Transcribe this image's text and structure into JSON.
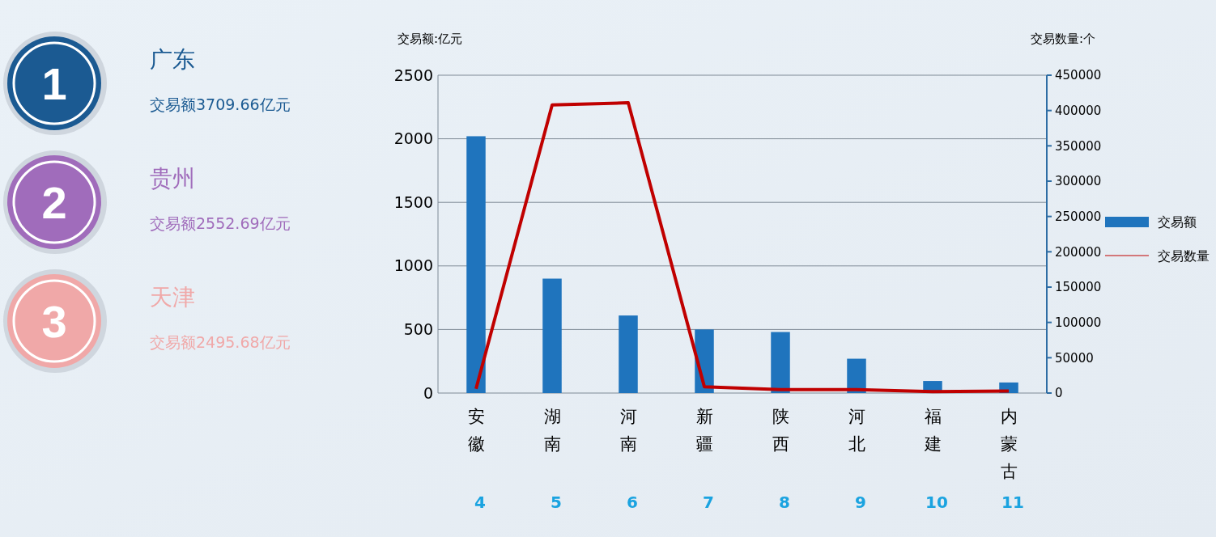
{
  "chart_data": {
    "type": "bar",
    "categories": [
      "安徽",
      "湖南",
      "河南",
      "新疆",
      "陕西",
      "河北",
      "福建",
      "内蒙古"
    ],
    "series": [
      {
        "name": "交易额",
        "color": "#1f74bd",
        "values": [
          2020,
          900,
          610,
          500,
          480,
          270,
          95,
          83
        ]
      },
      {
        "name": "交易数量",
        "type": "line",
        "axis": "y2",
        "color": "#c00000",
        "values": [
          6000,
          408000,
          411000,
          9000,
          5000,
          5000,
          2000,
          3000
        ]
      }
    ],
    "ylabel": "交易额:亿元",
    "y2label": "交易数量:个",
    "ylim": [
      0,
      2500
    ],
    "yticks": [
      0,
      500,
      1000,
      1500,
      2000,
      2500
    ],
    "y2lim": [
      0,
      450000
    ],
    "y2ticks": [
      0,
      50000,
      100000,
      150000,
      200000,
      250000,
      300000,
      350000,
      400000,
      450000
    ],
    "grid": "y",
    "legend": "right",
    "annotations": [
      "1",
      "广东",
      "交易额3709.66亿元",
      "2",
      "贵州",
      "交易额2552.69亿元",
      "3",
      "天津",
      "交易额2495.68亿元",
      "4",
      "5",
      "6",
      "7",
      "8",
      "9",
      "10",
      "11"
    ]
  }
}
